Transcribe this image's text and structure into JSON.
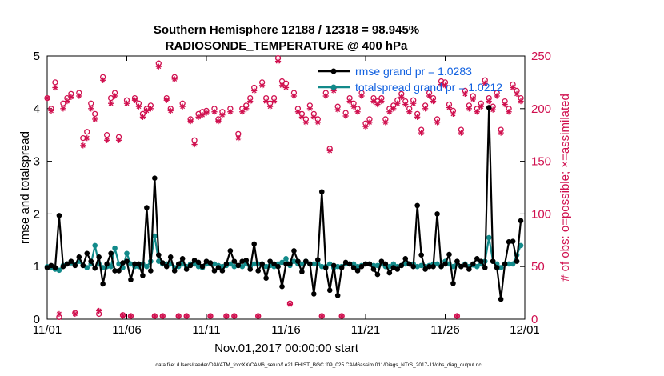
{
  "colors": {
    "rmse": "#000000",
    "spread": "#128a8a",
    "obs": "#d0104f",
    "legend_text": "#1060e0",
    "axis": "#000000"
  },
  "chart_data": {
    "type": "line",
    "title": [
      "Southern Hemisphere 12188 / 12318 = 98.945%",
      "RADIOSONDE_TEMPERATURE @ 400 hPa"
    ],
    "xlabel": "Nov.01,2017 00:00:00 start",
    "ylabel_left": "rmse and totalspread",
    "ylabel_right": "# of obs: o=possible; ×=assimilated",
    "xlim": [
      0,
      30
    ],
    "ylim_left": [
      0,
      5
    ],
    "ylim_right": [
      0,
      250
    ],
    "x_ticks": [
      0,
      5,
      10,
      15,
      20,
      25,
      30
    ],
    "x_tick_labels": [
      "11/01",
      "11/06",
      "11/11",
      "11/16",
      "11/21",
      "11/26",
      "12/01"
    ],
    "y_ticks_left": [
      0,
      1,
      2,
      3,
      4,
      5
    ],
    "y_tick_labels_left": [
      "0",
      "1",
      "2",
      "3",
      "4",
      "5"
    ],
    "y_ticks_right": [
      0,
      50,
      100,
      150,
      200,
      250
    ],
    "y_tick_labels_right": [
      "0",
      "50",
      "100",
      "150",
      "200",
      "250"
    ],
    "legend": [
      "rmse grand pr = 1.0283",
      "totalspread grand pr = 1.0212"
    ],
    "footnote": "data file: /Users/raeder/DAI/ATM_forcXX/CAM6_setup/f.e21.FHIST_BGC.f09_025.CAM6assim.011/Diags_NTrS_2017-11/obs_diag_output.nc",
    "x": [
      0.0,
      0.25,
      0.5,
      0.75,
      1.0,
      1.25,
      1.5,
      1.75,
      2.0,
      2.25,
      2.5,
      2.75,
      3.0,
      3.25,
      3.5,
      3.75,
      4.0,
      4.25,
      4.5,
      4.75,
      5.0,
      5.25,
      5.5,
      5.75,
      6.0,
      6.25,
      6.5,
      6.75,
      7.0,
      7.25,
      7.5,
      7.75,
      8.0,
      8.25,
      8.5,
      8.75,
      9.0,
      9.25,
      9.5,
      9.75,
      10.0,
      10.25,
      10.5,
      10.75,
      11.0,
      11.25,
      11.5,
      11.75,
      12.0,
      12.25,
      12.5,
      12.75,
      13.0,
      13.25,
      13.5,
      13.75,
      14.0,
      14.25,
      14.5,
      14.75,
      15.0,
      15.25,
      15.5,
      15.75,
      16.0,
      16.25,
      16.5,
      16.75,
      17.0,
      17.25,
      17.5,
      17.75,
      18.0,
      18.25,
      18.5,
      18.75,
      19.0,
      19.25,
      19.5,
      19.75,
      20.0,
      20.25,
      20.5,
      20.75,
      21.0,
      21.25,
      21.5,
      21.75,
      22.0,
      22.25,
      22.5,
      22.75,
      23.0,
      23.25,
      23.5,
      23.75,
      24.0,
      24.25,
      24.5,
      24.75,
      25.0,
      25.25,
      25.5,
      25.75,
      26.0,
      26.25,
      26.5,
      26.75,
      27.0,
      27.25,
      27.5,
      27.75,
      28.0,
      28.25,
      28.5,
      28.75,
      29.0,
      29.25,
      29.5,
      29.75
    ],
    "series": [
      {
        "name": "rmse",
        "values": [
          0.98,
          1.02,
          0.98,
          1.97,
          1.0,
          1.05,
          1.1,
          1.02,
          1.18,
          1.02,
          1.25,
          1.1,
          0.97,
          1.18,
          0.67,
          1.05,
          1.25,
          0.92,
          0.92,
          1.07,
          1.1,
          0.75,
          1.05,
          1.05,
          0.83,
          2.12,
          0.92,
          2.68,
          1.22,
          1.07,
          1.0,
          1.18,
          0.92,
          1.05,
          1.15,
          0.95,
          1.02,
          1.12,
          1.08,
          1.0,
          1.1,
          1.07,
          0.92,
          0.98,
          0.92,
          1.05,
          1.3,
          1.1,
          1.02,
          1.1,
          1.12,
          0.95,
          1.43,
          0.92,
          1.05,
          0.78,
          1.1,
          1.05,
          1.0,
          0.62,
          1.05,
          1.05,
          1.3,
          1.1,
          0.9,
          1.1,
          1.05,
          0.48,
          1.13,
          2.42,
          0.98,
          0.55,
          1.02,
          0.45,
          0.98,
          1.08,
          1.05,
          0.98,
          0.92,
          1.0,
          1.05,
          1.05,
          0.95,
          0.85,
          1.1,
          1.05,
          0.88,
          0.98,
          0.95,
          1.02,
          1.15,
          1.05,
          1.0,
          2.16,
          1.22,
          0.95,
          1.0,
          1.0,
          2.0,
          1.0,
          1.05,
          1.23,
          0.68,
          1.1,
          1.0,
          1.03,
          0.95,
          1.05,
          1.15,
          1.1,
          0.98,
          4.02,
          1.1,
          0.98,
          0.38,
          1.05,
          1.47,
          1.48,
          1.1,
          1.87
        ]
      },
      {
        "name": "totalspread",
        "values": [
          1.0,
          0.98,
          0.95,
          0.93,
          1.02,
          1.05,
          1.07,
          1.03,
          1.1,
          1.02,
          0.98,
          1.05,
          1.4,
          1.05,
          0.98,
          1.0,
          1.0,
          1.35,
          1.05,
          0.98,
          1.25,
          1.05,
          1.0,
          1.0,
          1.05,
          1.0,
          1.1,
          1.58,
          1.1,
          1.05,
          1.05,
          1.05,
          0.98,
          1.0,
          1.05,
          1.0,
          1.05,
          1.05,
          1.0,
          0.98,
          1.05,
          1.05,
          1.05,
          1.02,
          1.0,
          1.02,
          1.05,
          1.0,
          1.02,
          1.0,
          1.05,
          1.0,
          1.05,
          1.05,
          1.05,
          1.0,
          1.02,
          1.0,
          1.05,
          1.08,
          1.15,
          1.02,
          1.1,
          1.05,
          1.05,
          1.1,
          1.05,
          1.05,
          1.05,
          1.0,
          1.0,
          1.05,
          0.98,
          1.0,
          1.0,
          1.05,
          1.05,
          1.05,
          1.0,
          1.02,
          1.05,
          1.05,
          1.02,
          1.02,
          1.05,
          1.0,
          1.0,
          1.05,
          1.0,
          1.02,
          1.05,
          1.05,
          1.05,
          1.0,
          1.02,
          1.0,
          1.02,
          1.05,
          1.05,
          1.0,
          1.1,
          1.05,
          1.0,
          1.05,
          1.0,
          1.05,
          1.0,
          1.03,
          1.0,
          1.05,
          1.1,
          1.55,
          1.1,
          1.05,
          0.98,
          1.05,
          1.05,
          1.05,
          1.22,
          1.4
        ]
      },
      {
        "name": "obs_possible",
        "values": [
          210,
          200,
          225,
          2,
          205,
          210,
          214,
          6,
          215,
          172,
          178,
          205,
          195,
          5,
          230,
          175,
          210,
          215,
          173,
          4,
          208,
          3,
          210,
          205,
          195,
          200,
          203,
          3,
          243,
          3,
          210,
          200,
          230,
          3,
          205,
          3,
          190,
          170,
          195,
          197,
          198,
          3,
          200,
          190,
          197,
          3,
          200,
          3,
          176,
          200,
          203,
          210,
          220,
          3,
          225,
          210,
          205,
          210,
          248,
          226,
          224,
          15,
          215,
          200,
          195,
          190,
          203,
          195,
          190,
          3,
          215,
          162,
          220,
          202,
          3,
          196,
          210,
          205,
          200,
          215,
          186,
          190,
          210,
          207,
          210,
          190,
          200,
          203,
          208,
          214,
          207,
          200,
          208,
          195,
          180,
          203,
          215,
          210,
          190,
          226,
          225,
          204,
          198,
          3,
          180,
          217,
          203,
          212,
          200,
          205,
          227,
          210,
          202,
          215,
          180,
          207,
          200,
          223,
          217,
          210
        ]
      },
      {
        "name": "obs_assimilated",
        "values": [
          210,
          198,
          220,
          5,
          200,
          207,
          211,
          5,
          212,
          165,
          172,
          200,
          190,
          8,
          227,
          170,
          205,
          212,
          170,
          3,
          205,
          3,
          208,
          202,
          192,
          198,
          200,
          3,
          240,
          3,
          208,
          198,
          228,
          3,
          202,
          3,
          188,
          166,
          192,
          194,
          196,
          3,
          197,
          188,
          194,
          3,
          197,
          3,
          172,
          197,
          200,
          207,
          217,
          3,
          222,
          207,
          202,
          207,
          245,
          222,
          220,
          14,
          212,
          197,
          192,
          187,
          200,
          192,
          187,
          3,
          212,
          160,
          217,
          199,
          3,
          193,
          207,
          202,
          197,
          212,
          183,
          187,
          207,
          204,
          207,
          187,
          197,
          200,
          205,
          211,
          204,
          197,
          205,
          192,
          177,
          200,
          212,
          207,
          187,
          223,
          222,
          201,
          195,
          3,
          177,
          214,
          200,
          209,
          197,
          202,
          224,
          207,
          199,
          212,
          177,
          204,
          197,
          220,
          214,
          207
        ]
      }
    ]
  }
}
